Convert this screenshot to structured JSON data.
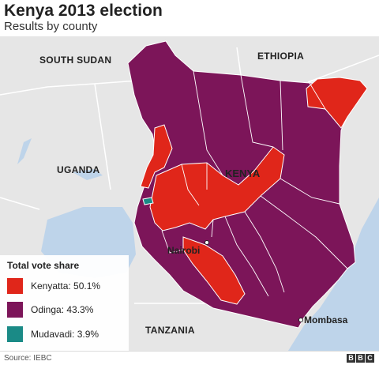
{
  "header": {
    "title": "Kenya 2013 election",
    "subtitle": "Results by county"
  },
  "map": {
    "countries": {
      "south_sudan": "SOUTH SUDAN",
      "ethiopia": "ETHIOPIA",
      "uganda": "UGANDA",
      "kenya": "KENYA",
      "tanzania": "TANZANIA"
    },
    "cities": {
      "nairobi": "Nairobi",
      "mombasa": "Mombasa"
    },
    "colors": {
      "kenyatta": "#e0261a",
      "odinga": "#7c1559",
      "mudavadi": "#1a8a86",
      "neighbor": "#e6e6e6",
      "water": "#bed4ea"
    }
  },
  "legend": {
    "title": "Total vote share",
    "items": [
      {
        "label": "Kenyatta: 50.1%",
        "color": "#e0261a"
      },
      {
        "label": "Odinga: 43.3%",
        "color": "#7c1559"
      },
      {
        "label": "Mudavadi: 3.9%",
        "color": "#1a8a86"
      }
    ]
  },
  "footer": {
    "source": "Source: IEBC",
    "logo": [
      "B",
      "B",
      "C"
    ]
  }
}
